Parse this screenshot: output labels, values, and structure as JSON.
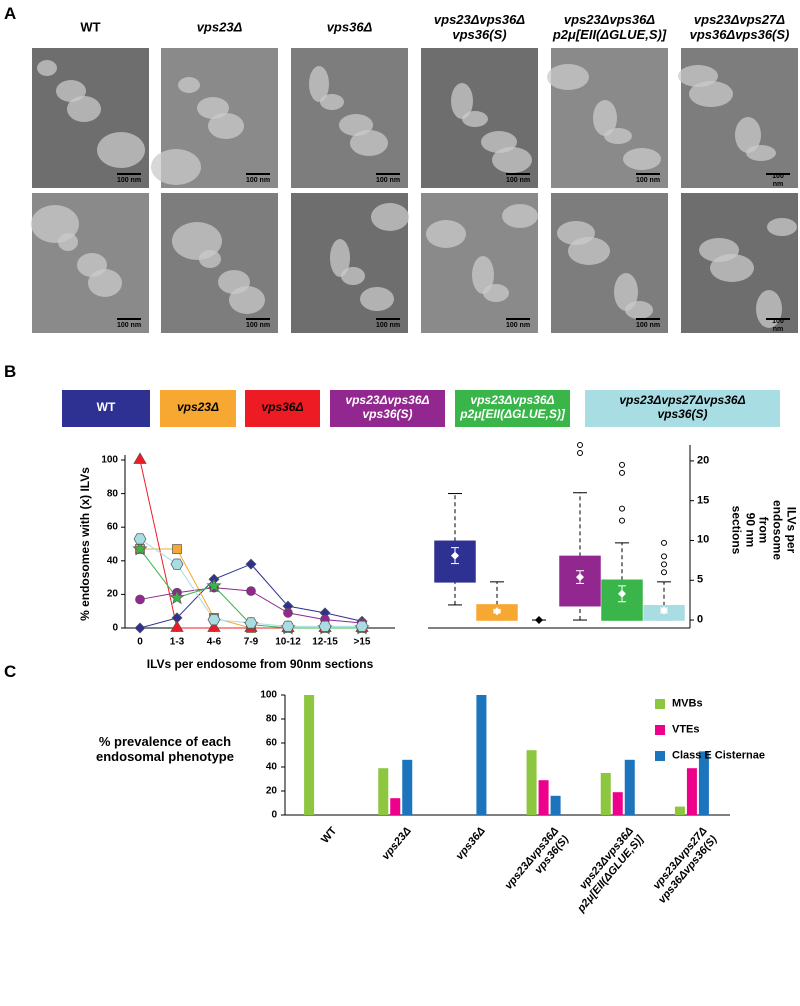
{
  "panel_labels": [
    "A",
    "B",
    "C"
  ],
  "panel_a": {
    "headers": [
      "WT",
      "vps23Δ",
      "vps36Δ",
      "vps23Δvps36Δ\nvps36(S)",
      "vps23Δvps36Δ\np2μ[EII(ΔGLUE,S)]",
      "vps23Δvps27Δ\nvps36Δvps36(S)"
    ],
    "scale_bar_label": "100 nm"
  },
  "chart_data": [
    {
      "type": "line",
      "y_label": "% endosomes with (x) ILVs",
      "x_label": "ILVs per endosome from 90nm sections",
      "categories": [
        "0",
        "1-3",
        "4-6",
        "7-9",
        "10-12",
        "12-15",
        ">15"
      ],
      "ylim": [
        0,
        100
      ],
      "yticks": [
        0,
        20,
        40,
        60,
        80,
        100
      ],
      "series": [
        {
          "name": "WT",
          "color": "#2e3192",
          "label_color": "#ffffff",
          "marker": "diamond",
          "values": [
            0,
            6,
            29,
            38,
            13,
            9,
            4
          ]
        },
        {
          "name": "vps23Δ",
          "color": "#f7a833",
          "label_color": "#000000",
          "marker": "square",
          "values": [
            47,
            47,
            6,
            0,
            0,
            0,
            0
          ]
        },
        {
          "name": "vps36Δ",
          "color": "#ed1c24",
          "label_color": "#000000",
          "marker": "triangle",
          "values": [
            100,
            0,
            0,
            0,
            0,
            0,
            0
          ]
        },
        {
          "name": "vps23Δvps36Δ\nvps36(S)",
          "color": "#92278f",
          "label_color": "#ffffff",
          "marker": "circle",
          "values": [
            17,
            21,
            24,
            22,
            9,
            5,
            3
          ]
        },
        {
          "name": "vps23Δvps36Δ\np2μ[EII(ΔGLUE,S)]",
          "color": "#39b54a",
          "label_color": "#ffffff",
          "marker": "star",
          "values": [
            47,
            18,
            25,
            2,
            0,
            0,
            0
          ]
        },
        {
          "name": "vps23Δvps27Δvps36Δ\nvps36(S)",
          "color": "#a8dde3",
          "label_color": "#000000",
          "marker": "hexagon",
          "values": [
            53,
            38,
            5,
            3,
            1,
            1,
            1
          ]
        }
      ]
    },
    {
      "type": "box",
      "y_label": "ILVs per endosome from\n90 nm sections",
      "ylim": [
        -1,
        22
      ],
      "yticks": [
        0,
        5,
        10,
        15,
        20
      ],
      "boxes": [
        {
          "color": "#2e3192",
          "whisker_low": 1.9,
          "q1": 4.8,
          "q3": 9.9,
          "whisker_high": 15.9,
          "mean": 8.1,
          "sem": 1.0,
          "outliers": []
        },
        {
          "color": "#f7a833",
          "whisker_low": 0,
          "q1": 0,
          "q3": 1.9,
          "whisker_high": 4.8,
          "mean": 1.1,
          "sem": 0.2,
          "outliers": []
        },
        {
          "color": "#ed1c24",
          "whisker_low": 0,
          "q1": 0,
          "q3": 0,
          "whisker_high": 0,
          "mean": 0,
          "sem": 0,
          "outliers": []
        },
        {
          "color": "#92278f",
          "whisker_low": 0,
          "q1": 1.8,
          "q3": 8.0,
          "whisker_high": 16,
          "mean": 5.4,
          "sem": 0.8,
          "outliers": [
            21,
            22
          ]
        },
        {
          "color": "#39b54a",
          "whisker_low": 0,
          "q1": 0,
          "q3": 5,
          "whisker_high": 9.7,
          "mean": 3.3,
          "sem": 1.0,
          "outliers": [
            12.5,
            14,
            18.5,
            19.5
          ]
        },
        {
          "color": "#a8dde3",
          "whisker_low": 0,
          "q1": 0,
          "q3": 1.8,
          "whisker_high": 4.8,
          "mean": 1.2,
          "sem": 0.3,
          "outliers": [
            6,
            7,
            8,
            9.7
          ]
        }
      ]
    },
    {
      "type": "bar",
      "y_label": "% prevalence of each\nendosomal phenotype",
      "categories": [
        "WT",
        "vps23Δ",
        "vps36Δ",
        "vps23Δvps36Δ\nvps36(S)",
        "vps23Δvps36Δ\np2μ[EII(ΔGLUE,S)]",
        "vps23Δvps27Δ\nvps36Δvps36(S)"
      ],
      "ylim": [
        0,
        100
      ],
      "yticks": [
        0,
        20,
        40,
        60,
        80,
        100
      ],
      "series": [
        {
          "name": "MVBs",
          "color": "#8dc63f",
          "values": [
            100,
            39,
            0,
            54,
            35,
            7
          ]
        },
        {
          "name": "VTEs",
          "color": "#ec008c",
          "values": [
            0,
            14,
            0,
            29,
            19,
            39
          ]
        },
        {
          "name": "Class E Cisternae",
          "color": "#1c75bc",
          "values": [
            0,
            46,
            100,
            16,
            46,
            53
          ]
        }
      ]
    }
  ]
}
